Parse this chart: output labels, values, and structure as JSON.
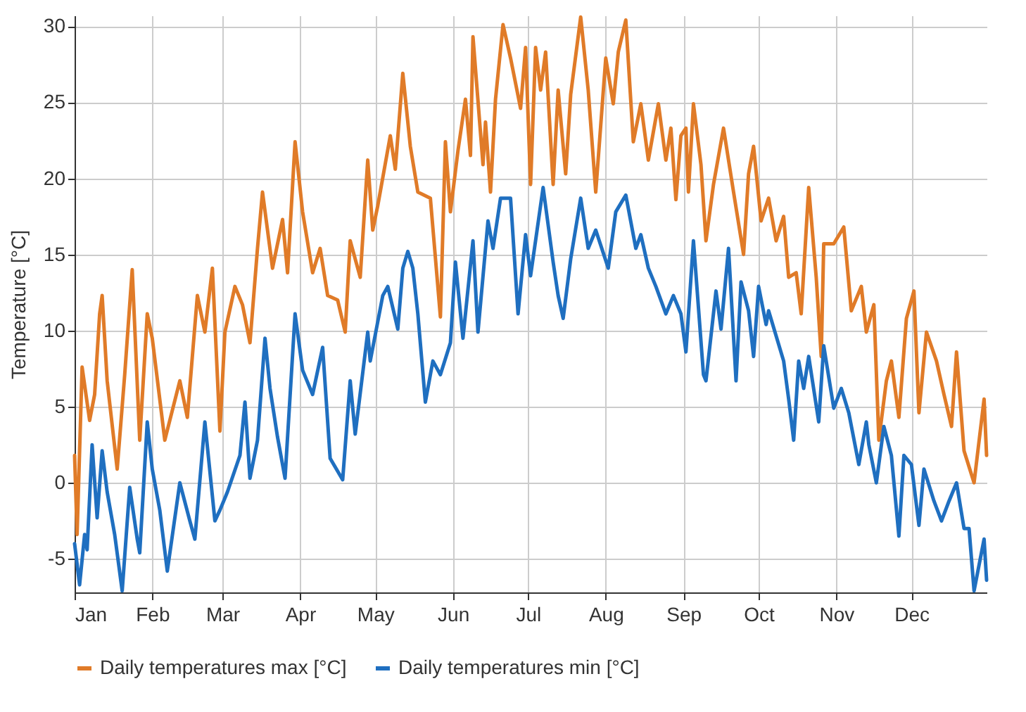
{
  "chart_data": {
    "type": "line",
    "ylabel": "Temperature [°C]",
    "ylim": [
      -7.2,
      30.7
    ],
    "yticks": [
      -5,
      0,
      5,
      10,
      15,
      20,
      25,
      30
    ],
    "xlim": [
      "--01-01",
      "--12-31"
    ],
    "xticks": [
      {
        "value": "--01-01",
        "label": "Jan"
      },
      {
        "value": "--02-01",
        "label": "Feb"
      },
      {
        "value": "--03-01",
        "label": "Mar"
      },
      {
        "value": "--04-01",
        "label": "Apr"
      },
      {
        "value": "--05-01",
        "label": "May"
      },
      {
        "value": "--06-01",
        "label": "Jun"
      },
      {
        "value": "--07-01",
        "label": "Jul"
      },
      {
        "value": "--08-01",
        "label": "Aug"
      },
      {
        "value": "--09-01",
        "label": "Sep"
      },
      {
        "value": "--10-01",
        "label": "Oct"
      },
      {
        "value": "--11-01",
        "label": "Nov"
      },
      {
        "value": "--12-01",
        "label": "Dec"
      }
    ],
    "grid": true,
    "legend": "bottom",
    "marker": "none",
    "line_style": "solid",
    "series": [
      {
        "name": "Daily temperatures max [°C]",
        "color": "#e07b28",
        "x": [
          "--01-01",
          "--01-02",
          "--01-04",
          "--01-07",
          "--01-09",
          "--01-11",
          "--01-12",
          "--01-14",
          "--01-18",
          "--01-21",
          "--01-24",
          "--01-27",
          "--01-30",
          "--02-01",
          "--02-06",
          "--02-12",
          "--02-15",
          "--02-19",
          "--02-22",
          "--02-25",
          "--02-28",
          "--03-02",
          "--03-06",
          "--03-09",
          "--03-12",
          "--03-15",
          "--03-17",
          "--03-21",
          "--03-25",
          "--03-27",
          "--03-30",
          "--04-02",
          "--04-06",
          "--04-09",
          "--04-12",
          "--04-16",
          "--04-19",
          "--04-21",
          "--04-25",
          "--04-28",
          "--04-30",
          "--05-02",
          "--05-07",
          "--05-09",
          "--05-12",
          "--05-15",
          "--05-18",
          "--05-23",
          "--05-27",
          "--05-29",
          "--05-31",
          "--06-03",
          "--06-06",
          "--06-08",
          "--06-09",
          "--06-13",
          "--06-14",
          "--06-16",
          "--06-18",
          "--06-21",
          "--06-24",
          "--06-28",
          "--06-30",
          "--07-02",
          "--07-04",
          "--07-06",
          "--07-08",
          "--07-11",
          "--07-13",
          "--07-16",
          "--07-18",
          "--07-22",
          "--07-25",
          "--07-28",
          "--08-01",
          "--08-04",
          "--08-06",
          "--08-09",
          "--08-12",
          "--08-15",
          "--08-18",
          "--08-22",
          "--08-25",
          "--08-27",
          "--08-29",
          "--08-31",
          "--09-02",
          "--09-03",
          "--09-05",
          "--09-08",
          "--09-10",
          "--09-13",
          "--09-17",
          "--09-21",
          "--09-25",
          "--09-27",
          "--09-29",
          "--10-02",
          "--10-05",
          "--10-08",
          "--10-11",
          "--10-13",
          "--10-16",
          "--10-18",
          "--10-21",
          "--10-24",
          "--10-26",
          "--10-27",
          "--10-31",
          "--11-04",
          "--11-07",
          "--11-11",
          "--11-13",
          "--11-16",
          "--11-18",
          "--11-21",
          "--11-23",
          "--11-26",
          "--11-29",
          "--12-02",
          "--12-04",
          "--12-07",
          "--12-11",
          "--12-14",
          "--12-17",
          "--12-19",
          "--12-22",
          "--12-26",
          "--12-30",
          "--12-31"
        ],
        "values": [
          1.8,
          -3.4,
          7.6,
          4.1,
          5.8,
          11.1,
          12.3,
          6.7,
          0.9,
          7.1,
          14.0,
          2.8,
          11.1,
          9.5,
          2.8,
          6.7,
          4.3,
          12.3,
          9.9,
          14.1,
          3.4,
          9.9,
          12.9,
          11.7,
          9.2,
          15.4,
          19.1,
          14.1,
          17.3,
          13.8,
          22.4,
          17.8,
          13.8,
          15.4,
          12.3,
          12.0,
          9.9,
          15.9,
          13.5,
          21.2,
          16.6,
          18.2,
          22.8,
          20.6,
          26.9,
          22.1,
          19.1,
          18.7,
          10.9,
          22.4,
          17.8,
          21.8,
          25.2,
          21.5,
          29.3,
          20.9,
          23.7,
          19.1,
          25.2,
          30.1,
          27.9,
          24.6,
          28.6,
          19.6,
          28.6,
          25.8,
          28.3,
          19.6,
          25.8,
          20.3,
          25.5,
          30.6,
          25.8,
          19.1,
          27.9,
          24.9,
          28.3,
          30.4,
          22.4,
          24.9,
          21.2,
          24.9,
          21.2,
          23.3,
          18.6,
          22.8,
          23.3,
          19.1,
          24.9,
          20.9,
          15.9,
          19.6,
          23.3,
          19.1,
          15.0,
          20.3,
          22.1,
          17.2,
          18.7,
          15.9,
          17.5,
          13.5,
          13.8,
          11.1,
          19.4,
          13.5,
          8.3,
          15.7,
          15.7,
          16.8,
          11.3,
          12.9,
          9.9,
          11.7,
          2.8,
          6.7,
          8.0,
          4.3,
          10.8,
          12.6,
          4.6,
          9.9,
          8.0,
          5.8,
          3.7,
          8.6,
          2.1,
          0.0,
          5.5,
          1.8
        ]
      },
      {
        "name": "Daily temperatures min [°C]",
        "color": "#1f6fc0",
        "x": [
          "--01-01",
          "--01-03",
          "--01-05",
          "--01-06",
          "--01-08",
          "--01-10",
          "--01-12",
          "--01-14",
          "--01-17",
          "--01-20",
          "--01-23",
          "--01-26",
          "--01-27",
          "--01-30",
          "--02-01",
          "--02-04",
          "--02-07",
          "--02-12",
          "--02-16",
          "--02-18",
          "--02-22",
          "--02-26",
          "--02-28",
          "--03-03",
          "--03-08",
          "--03-10",
          "--03-12",
          "--03-15",
          "--03-18",
          "--03-20",
          "--03-23",
          "--03-26",
          "--03-30",
          "--04-02",
          "--04-06",
          "--04-10",
          "--04-13",
          "--04-18",
          "--04-21",
          "--04-23",
          "--04-28",
          "--04-29",
          "--05-04",
          "--05-06",
          "--05-10",
          "--05-12",
          "--05-14",
          "--05-16",
          "--05-18",
          "--05-21",
          "--05-24",
          "--05-27",
          "--05-31",
          "--06-02",
          "--06-05",
          "--06-09",
          "--06-11",
          "--06-15",
          "--06-17",
          "--06-20",
          "--06-24",
          "--06-27",
          "--06-30",
          "--07-02",
          "--07-07",
          "--07-11",
          "--07-13",
          "--07-15",
          "--07-18",
          "--07-22",
          "--07-25",
          "--07-28",
          "--08-02",
          "--08-05",
          "--08-09",
          "--08-13",
          "--08-15",
          "--08-18",
          "--08-21",
          "--08-25",
          "--08-28",
          "--08-31",
          "--09-02",
          "--09-05",
          "--09-09",
          "--09-10",
          "--09-14",
          "--09-16",
          "--09-19",
          "--09-22",
          "--09-24",
          "--09-27",
          "--09-29",
          "--10-01",
          "--10-04",
          "--10-05",
          "--10-11",
          "--10-13",
          "--10-15",
          "--10-17",
          "--10-19",
          "--10-21",
          "--10-25",
          "--10-27",
          "--10-31",
          "--11-03",
          "--11-06",
          "--11-10",
          "--11-13",
          "--11-14",
          "--11-17",
          "--11-20",
          "--11-23",
          "--11-26",
          "--11-28",
          "--12-01",
          "--12-04",
          "--12-06",
          "--12-10",
          "--12-13",
          "--12-16",
          "--12-19",
          "--12-22",
          "--12-24",
          "--12-26",
          "--12-30",
          "--12-31"
        ],
        "values": [
          -4.0,
          -6.7,
          -3.4,
          -4.4,
          2.5,
          -2.3,
          2.1,
          -0.6,
          -3.4,
          -7.1,
          -0.3,
          -3.7,
          -4.6,
          4.0,
          0.9,
          -1.8,
          -5.8,
          0.0,
          -2.5,
          -3.7,
          4.0,
          -2.5,
          -1.8,
          -0.6,
          1.8,
          5.3,
          0.3,
          2.8,
          9.5,
          6.2,
          3.0,
          0.3,
          11.1,
          7.4,
          5.8,
          8.9,
          1.6,
          0.2,
          6.7,
          3.2,
          9.9,
          8.0,
          12.3,
          12.9,
          10.1,
          14.1,
          15.2,
          14.1,
          11.1,
          5.3,
          8.0,
          7.1,
          9.2,
          14.5,
          9.5,
          15.9,
          9.9,
          17.2,
          15.4,
          18.7,
          18.7,
          11.1,
          16.3,
          13.6,
          19.4,
          14.5,
          12.3,
          10.8,
          14.7,
          18.7,
          15.4,
          16.6,
          14.1,
          17.8,
          18.9,
          15.4,
          16.3,
          14.1,
          12.9,
          11.1,
          12.3,
          11.1,
          8.6,
          15.9,
          7.1,
          6.7,
          12.6,
          10.1,
          15.4,
          6.7,
          13.2,
          11.3,
          8.3,
          12.9,
          10.4,
          11.3,
          8.0,
          5.5,
          2.8,
          8.0,
          6.2,
          8.3,
          4.0,
          9.0,
          4.9,
          6.2,
          4.6,
          1.2,
          4.0,
          2.5,
          0.0,
          3.7,
          1.8,
          -3.5,
          1.8,
          1.2,
          -2.8,
          0.9,
          -1.2,
          -2.5,
          -1.2,
          0.0,
          -3.0,
          -3.0,
          -7.1,
          -3.7,
          -6.4
        ]
      }
    ]
  }
}
